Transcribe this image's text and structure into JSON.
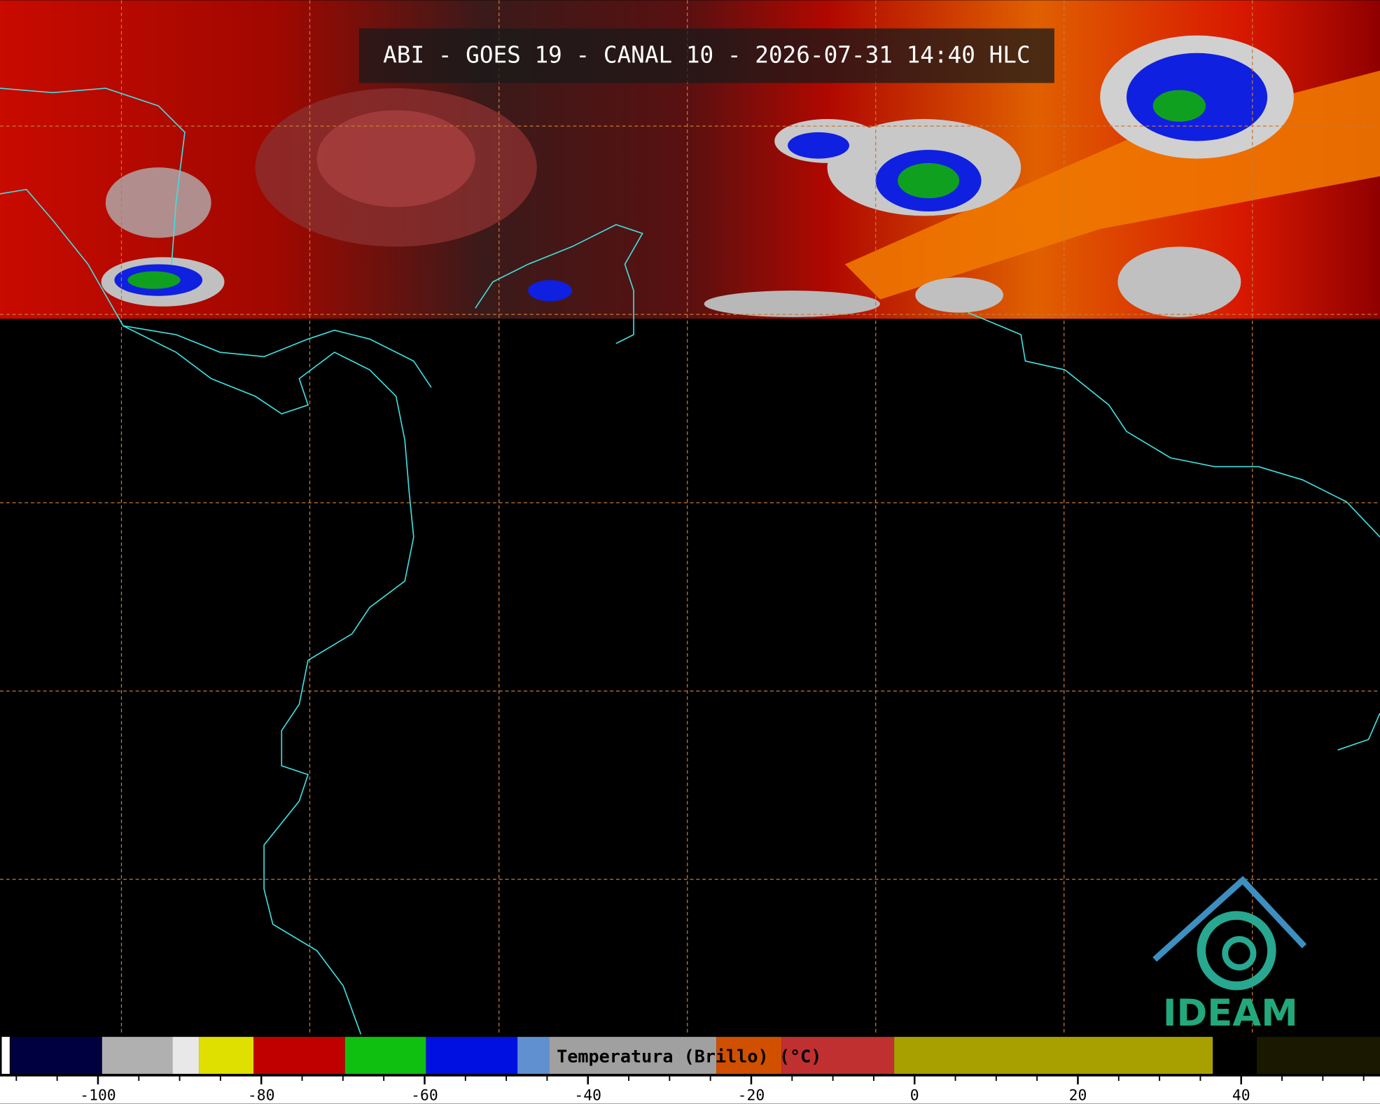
{
  "title": "ABI - GOES 19 - CANAL 10 - 2026-07-31 14:40 HLC",
  "colorbar": {
    "label": "Temperatura (Brillo) (°C)",
    "range": [
      -112,
      57
    ],
    "ticks": [
      -100,
      -80,
      -60,
      -40,
      -20,
      0,
      20,
      40
    ]
  },
  "logo": "IDEAM"
}
